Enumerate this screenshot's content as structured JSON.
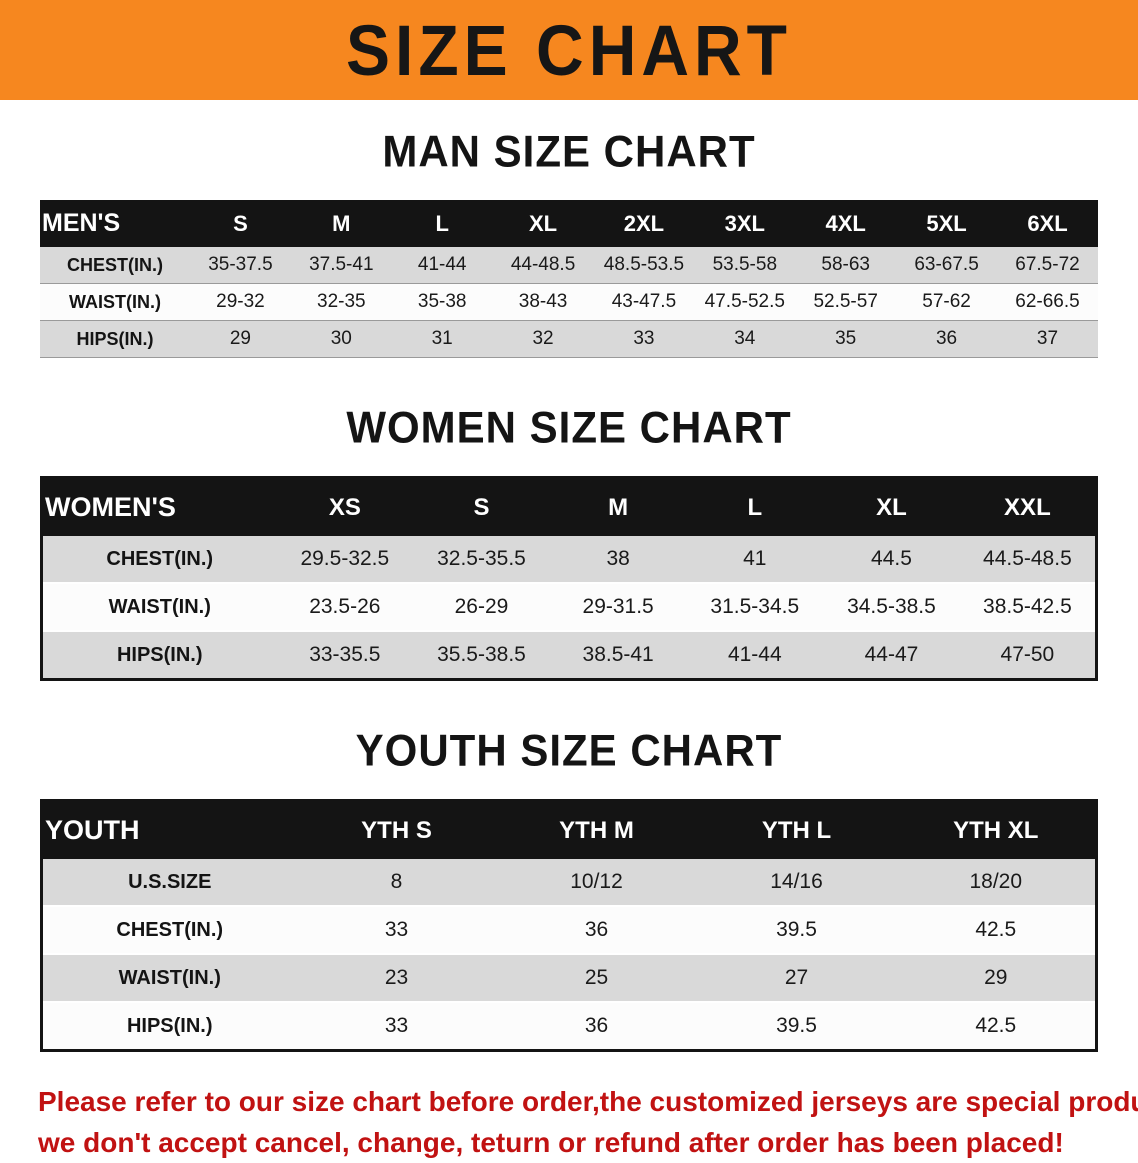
{
  "banner": {
    "title": "SIZE CHART",
    "bg_color": "#f6871f"
  },
  "sections": [
    {
      "id": "men",
      "heading": "MAN SIZE CHART",
      "table": {
        "header": [
          "MEN'S",
          "S",
          "M",
          "L",
          "XL",
          "2XL",
          "3XL",
          "4XL",
          "5XL",
          "6XL"
        ],
        "rows": [
          [
            "CHEST(IN.)",
            "35-37.5",
            "37.5-41",
            "41-44",
            "44-48.5",
            "48.5-53.5",
            "53.5-58",
            "58-63",
            "63-67.5",
            "67.5-72"
          ],
          [
            "WAIST(IN.)",
            "29-32",
            "32-35",
            "35-38",
            "38-43",
            "43-47.5",
            "47.5-52.5",
            "52.5-57",
            "57-62",
            "62-66.5"
          ],
          [
            "HIPS(IN.)",
            "29",
            "30",
            "31",
            "32",
            "33",
            "34",
            "35",
            "36",
            "37"
          ]
        ]
      }
    },
    {
      "id": "women",
      "heading": "WOMEN SIZE CHART",
      "table": {
        "header": [
          "WOMEN'S",
          "XS",
          "S",
          "M",
          "L",
          "XL",
          "XXL"
        ],
        "rows": [
          [
            "CHEST(IN.)",
            "29.5-32.5",
            "32.5-35.5",
            "38",
            "41",
            "44.5",
            "44.5-48.5"
          ],
          [
            "WAIST(IN.)",
            "23.5-26",
            "26-29",
            "29-31.5",
            "31.5-34.5",
            "34.5-38.5",
            "38.5-42.5"
          ],
          [
            "HIPS(IN.)",
            "33-35.5",
            "35.5-38.5",
            "38.5-41",
            "41-44",
            "44-47",
            "47-50"
          ]
        ]
      }
    },
    {
      "id": "youth",
      "heading": "YOUTH SIZE CHART",
      "table": {
        "header": [
          "YOUTH",
          "YTH S",
          "YTH M",
          "YTH L",
          "YTH XL"
        ],
        "rows": [
          [
            "U.S.SIZE",
            "8",
            "10/12",
            "14/16",
            "18/20"
          ],
          [
            "CHEST(IN.)",
            "33",
            "36",
            "39.5",
            "42.5"
          ],
          [
            "WAIST(IN.)",
            "23",
            "25",
            "27",
            "29"
          ],
          [
            "HIPS(IN.)",
            "33",
            "36",
            "39.5",
            "42.5"
          ]
        ]
      }
    }
  ],
  "disclaimer": {
    "color": "#c11212",
    "line1": "Please refer to our size chart before order,the customized jerseys are special products,",
    "line2": "we don't accept cancel, change, teturn or refund after order has been placed!"
  }
}
